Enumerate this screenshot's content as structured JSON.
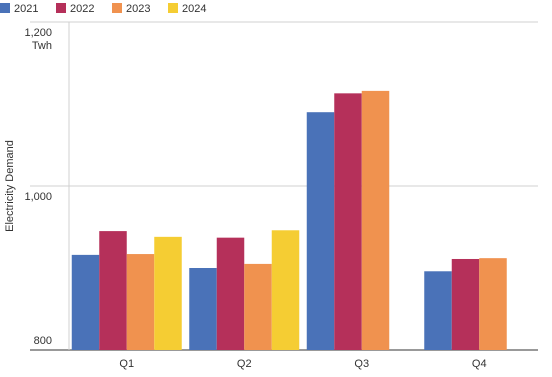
{
  "chart_data": {
    "type": "bar",
    "y_label": "Electricity Demand",
    "y_unit": "Twh",
    "categories": [
      "Q1",
      "Q2",
      "Q3",
      "Q4"
    ],
    "series": [
      {
        "name": "2021",
        "color": "#4a72b8",
        "values": [
          916,
          900,
          1090,
          896
        ]
      },
      {
        "name": "2022",
        "color": "#b5305a",
        "values": [
          945,
          937,
          1113,
          911
        ]
      },
      {
        "name": "2023",
        "color": "#f0924f",
        "values": [
          917,
          905,
          1116,
          912
        ]
      },
      {
        "name": "2024",
        "color": "#f5cd33",
        "values": [
          938,
          946,
          null,
          null
        ]
      }
    ],
    "ylim": [
      800,
      1200
    ],
    "yticks": [
      800,
      {
        "value": 1000,
        "label": "1,000"
      },
      {
        "value": 1200,
        "label": "1,200"
      }
    ],
    "grid": true
  }
}
